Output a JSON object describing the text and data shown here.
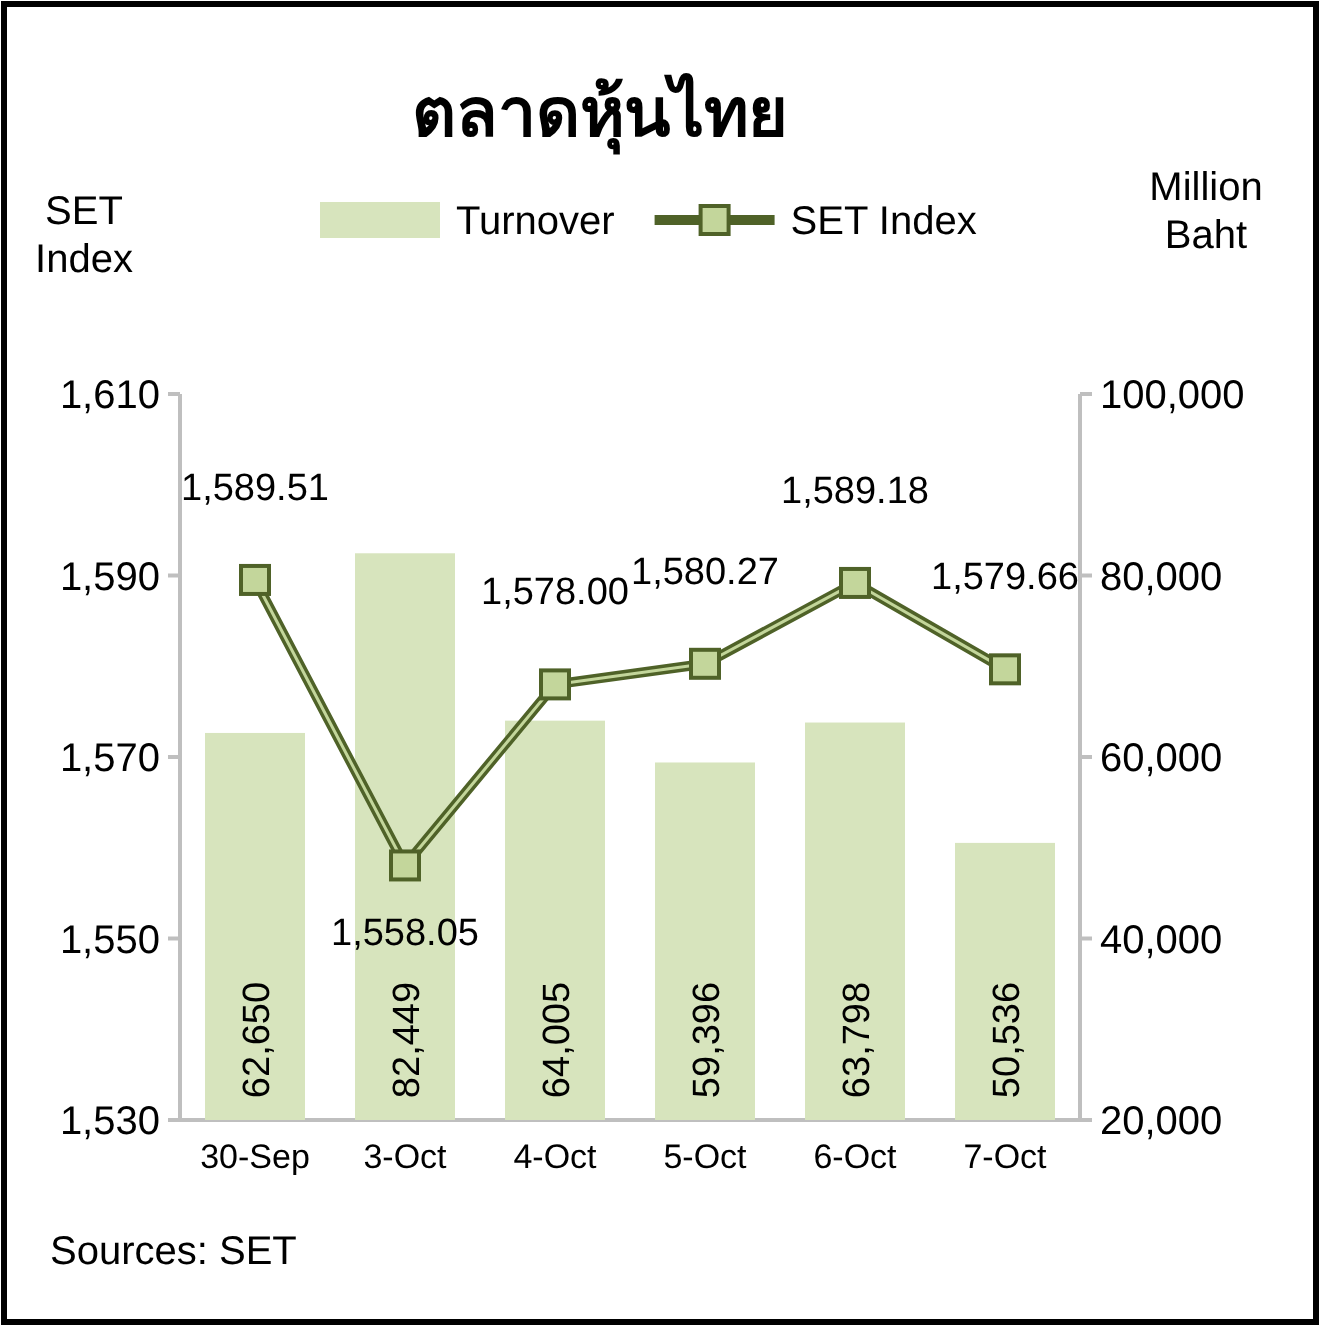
{
  "chart_data": {
    "type": "bar",
    "title": "ตลาดหุ้นไทย",
    "ylabel": "SET Index",
    "y2label": "Million Baht",
    "categories": [
      "30-Sep",
      "3-Oct",
      "4-Oct",
      "5-Oct",
      "6-Oct",
      "7-Oct"
    ],
    "series": [
      {
        "name": "Turnover",
        "axis": "y2",
        "color": "#d7e4bd",
        "values": [
          62650,
          82449,
          64005,
          59396,
          63798,
          50536
        ],
        "value_labels": [
          "62,650",
          "82,449",
          "64,005",
          "59,396",
          "63,798",
          "50,536"
        ]
      },
      {
        "name": "SET Index",
        "type": "line",
        "axis": "y",
        "color": "#4f6228",
        "values": [
          1589.51,
          1558.05,
          1578.0,
          1580.27,
          1589.18,
          1579.66
        ],
        "value_labels": [
          "1,589.51",
          "1,558.05",
          "1,578.00",
          "1,580.27",
          "1,589.18",
          "1,579.66"
        ]
      }
    ],
    "ylim": [
      1530,
      1610
    ],
    "yticks": [
      {
        "value": 1530,
        "label": "1,530"
      },
      {
        "value": 1550,
        "label": "1,550"
      },
      {
        "value": 1570,
        "label": "1,570"
      },
      {
        "value": 1590,
        "label": "1,590"
      },
      {
        "value": 1610,
        "label": "1,610"
      }
    ],
    "y2lim": [
      20000,
      100000
    ],
    "y2ticks": [
      {
        "value": 20000,
        "label": "20,000"
      },
      {
        "value": 40000,
        "label": "40,000"
      },
      {
        "value": 60000,
        "label": "60,000"
      },
      {
        "value": 80000,
        "label": "80,000"
      },
      {
        "value": 100000,
        "label": "100,000"
      }
    ],
    "marker": "square",
    "legend": "top",
    "grid": false,
    "annotations": [
      "Sources: SET"
    ]
  }
}
